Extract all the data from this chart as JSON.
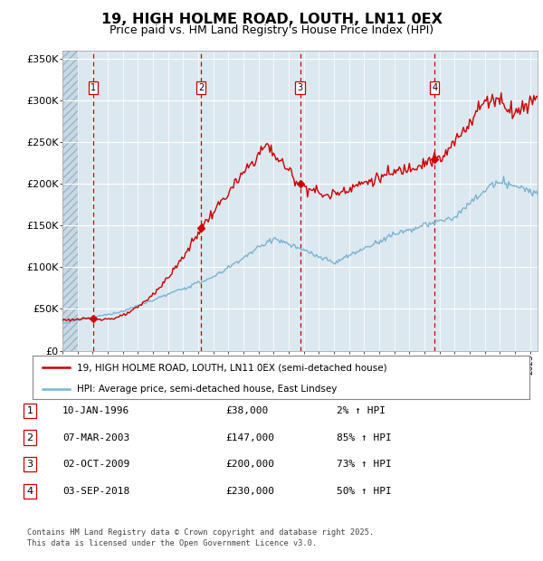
{
  "title": "19, HIGH HOLME ROAD, LOUTH, LN11 0EX",
  "subtitle": "Price paid vs. HM Land Registry's House Price Index (HPI)",
  "legend_line1": "19, HIGH HOLME ROAD, LOUTH, LN11 0EX (semi-detached house)",
  "legend_line2": "HPI: Average price, semi-detached house, East Lindsey",
  "footer1": "Contains HM Land Registry data © Crown copyright and database right 2025.",
  "footer2": "This data is licensed under the Open Government Licence v3.0.",
  "transactions": [
    {
      "num": 1,
      "date": "10-JAN-1996",
      "year": 1996.03,
      "price": 38000,
      "pct": "2%",
      "dir": "↑"
    },
    {
      "num": 2,
      "date": "07-MAR-2003",
      "year": 2003.18,
      "price": 147000,
      "pct": "85%",
      "dir": "↑"
    },
    {
      "num": 3,
      "date": "02-OCT-2009",
      "year": 2009.75,
      "price": 200000,
      "pct": "73%",
      "dir": "↑"
    },
    {
      "num": 4,
      "date": "03-SEP-2018",
      "year": 2018.67,
      "price": 230000,
      "pct": "50%",
      "dir": "↑"
    }
  ],
  "ylim": [
    0,
    360000
  ],
  "xlim_start": 1994.0,
  "xlim_end": 2025.5,
  "red_color": "#cc0000",
  "blue_color": "#7ab4d0",
  "bg_color": "#dce8f0",
  "grid_color": "#ffffff",
  "ytick_labels": [
    "£0",
    "£50K",
    "£100K",
    "£150K",
    "£200K",
    "£250K",
    "£300K",
    "£350K"
  ],
  "ytick_values": [
    0,
    50000,
    100000,
    150000,
    200000,
    250000,
    300000,
    350000
  ]
}
